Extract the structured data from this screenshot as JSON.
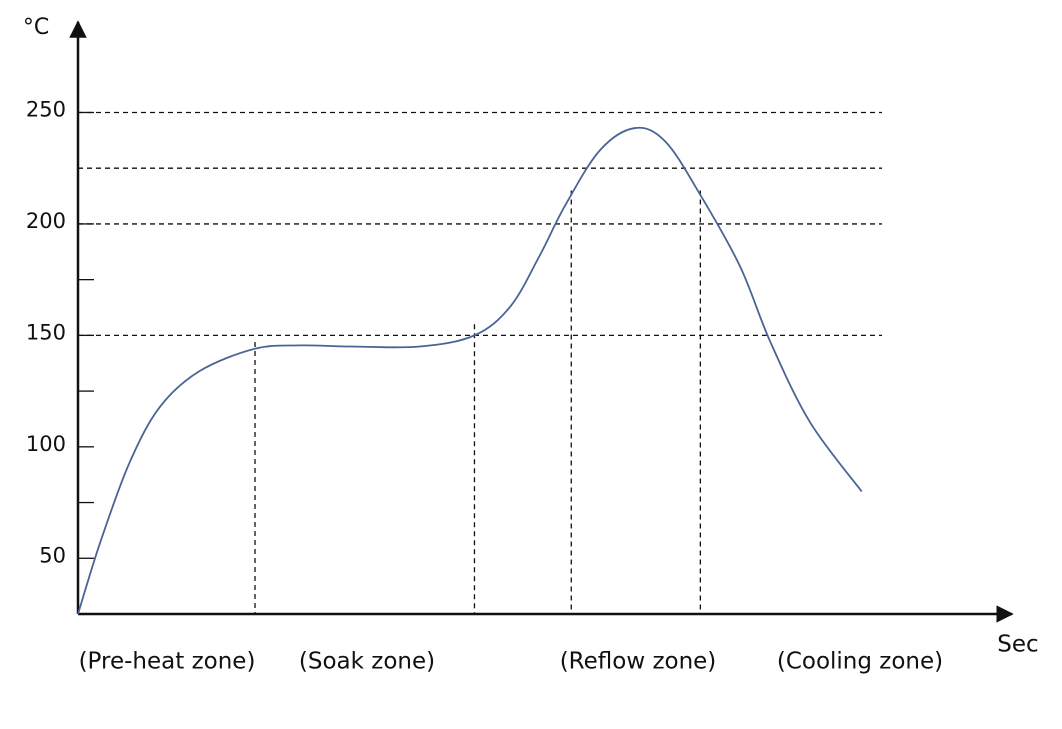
{
  "chart_data": {
    "type": "line",
    "y_label": "°C",
    "x_label": "Sec",
    "x": [
      0,
      2.4,
      5.6,
      8.9,
      13.2,
      19.2,
      24.1,
      29.5,
      37.1,
      43,
      46.9,
      50.1,
      52.8,
      56.6,
      60.4,
      63.7,
      67.5,
      71.8,
      75.1,
      79.4,
      85
    ],
    "values": [
      25,
      57,
      93,
      118,
      134,
      144,
      145.5,
      145,
      145,
      150,
      163,
      186,
      208,
      233,
      243,
      237,
      213,
      181,
      147,
      111,
      80
    ],
    "color": "#4a6496",
    "xlim": [
      0,
      100
    ],
    "ylim": [
      25,
      287
    ],
    "yticks": [
      50,
      100,
      150,
      200,
      250
    ],
    "minor_yticks": [
      75,
      125,
      175
    ],
    "grid_lines": [
      150,
      200,
      225,
      250
    ],
    "zone_boundaries": {
      "x": [
        19.2,
        43,
        53.5,
        67.5
      ],
      "top": [
        147,
        155,
        215,
        215
      ]
    },
    "annotations": [
      "(Pre-heat zone)",
      "(Soak zone)",
      "(Reflow zone)",
      "(Cooling zone)"
    ]
  }
}
